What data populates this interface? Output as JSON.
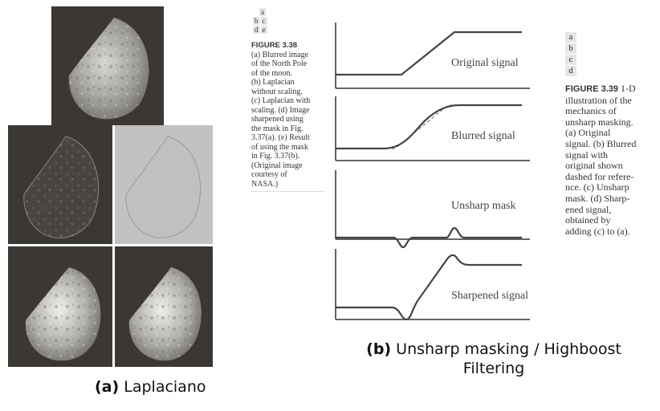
{
  "left_panel": {
    "panels": [
      {
        "id": "a",
        "kind": "moon"
      },
      {
        "id": "b",
        "kind": "edges"
      },
      {
        "id": "c",
        "kind": "laplacian-scaled"
      },
      {
        "id": "d",
        "kind": "moon-sharpened"
      },
      {
        "id": "e",
        "kind": "moon-sharpened"
      }
    ],
    "caption_letter": "(a)",
    "caption_text": "Laplaciano"
  },
  "fig38": {
    "grid": [
      [
        "a",
        ""
      ],
      [
        "b",
        "c"
      ],
      [
        "d",
        "e"
      ]
    ],
    "title": "FIGURE 3.38",
    "lines": [
      "(a) Blurred image",
      "of the North Pole",
      "of the moon.",
      "(b) Laplacian",
      "without scaling.",
      "(c) Laplacian with",
      "scaling. (d) Image",
      "sharpened using",
      "the mask in Fig.",
      "3.37(a). (e) Result",
      "of using the mask",
      "in Fig. 3.37(b).",
      "(Original image",
      "courtesy of",
      "NASA.)"
    ]
  },
  "signals": {
    "labels": [
      "Original signal",
      "Blurred signal",
      "Unsharp mask",
      "Sharpened signal"
    ]
  },
  "fig39": {
    "letters": [
      "a",
      "b",
      "c",
      "d"
    ],
    "title": "FIGURE 3.39",
    "title_rest": "1-D",
    "lines": [
      "illustration of the",
      "mechanics of",
      "unsharp masking.",
      "(a) Original",
      "signal. (b) Blurred",
      "signal with",
      "original shown",
      "dashed for refere-",
      "nce. (c) Unsharp",
      "mask. (d) Sharp-",
      "ened signal,",
      "obtained by",
      "adding (c) to (a)."
    ]
  },
  "caption_b": {
    "letter": "(b)",
    "line1": "Unsharp masking / Highboost",
    "line2": "Filtering"
  }
}
